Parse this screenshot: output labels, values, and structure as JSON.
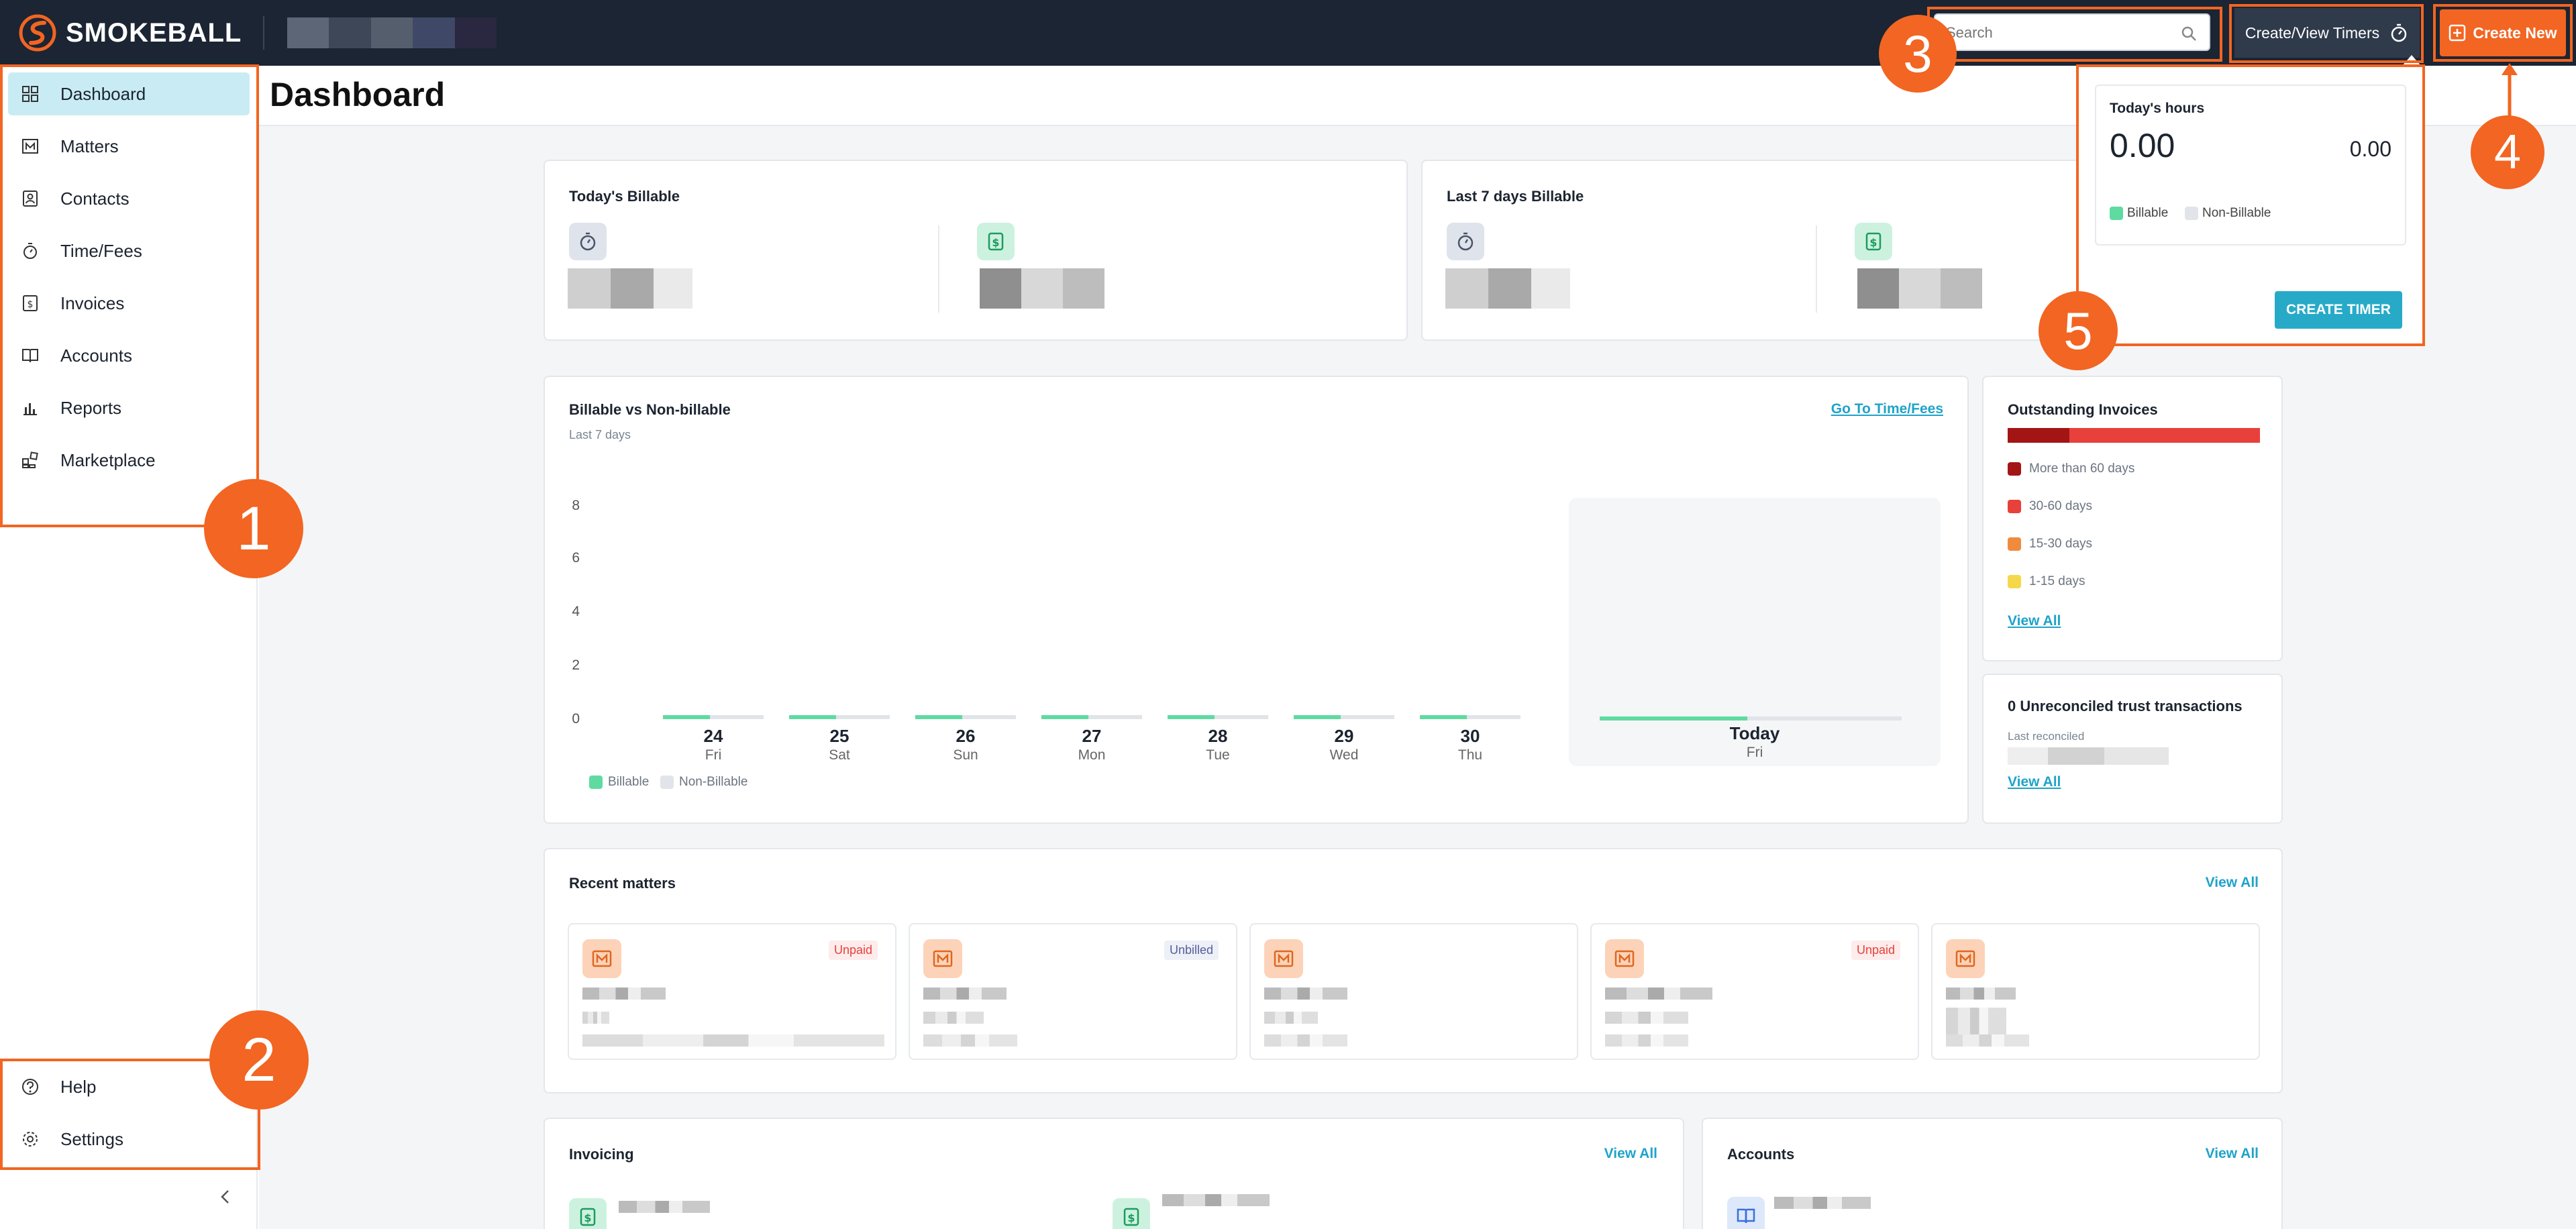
{
  "app": {
    "logo_text": "SMOKEBALL"
  },
  "header": {
    "search_placeholder": "Search",
    "timers_label": "Create/View Timers",
    "create_new_label": "Create New"
  },
  "sidebar": {
    "items": [
      {
        "label": "Dashboard",
        "icon": "dashboard-icon",
        "active": true
      },
      {
        "label": "Matters",
        "icon": "matters-icon"
      },
      {
        "label": "Contacts",
        "icon": "contacts-icon"
      },
      {
        "label": "Time/Fees",
        "icon": "timer-icon"
      },
      {
        "label": "Invoices",
        "icon": "invoice-icon"
      },
      {
        "label": "Accounts",
        "icon": "accounts-icon"
      },
      {
        "label": "Reports",
        "icon": "reports-icon"
      },
      {
        "label": "Marketplace",
        "icon": "marketplace-icon"
      }
    ],
    "bottom": [
      {
        "label": "Help",
        "icon": "help-icon"
      },
      {
        "label": "Settings",
        "icon": "settings-icon"
      }
    ]
  },
  "main": {
    "title": "Dashboard",
    "todays_billable": {
      "title": "Today's Billable"
    },
    "last7_billable": {
      "title": "Last 7 days Billable"
    },
    "chart_card": {
      "title": "Billable vs Non-billable",
      "subtitle": "Last 7 days",
      "link": "Go To Time/Fees"
    },
    "outstanding": {
      "title": "Outstanding Invoices",
      "legend": [
        {
          "label": "More than 60 days",
          "color": "#a31515"
        },
        {
          "label": "30-60 days",
          "color": "#e8403a"
        },
        {
          "label": "15-30 days",
          "color": "#f08a3c"
        },
        {
          "label": "1-15 days",
          "color": "#f5d84a"
        }
      ],
      "link": "View All"
    },
    "trust": {
      "title": "0 Unreconciled trust transactions",
      "sub": "Last reconciled",
      "link": "View All"
    },
    "recent_matters": {
      "title": "Recent matters",
      "link": "View All",
      "items": [
        {
          "status": "Unpaid"
        },
        {
          "status": "Unbilled"
        },
        {
          "status": ""
        },
        {
          "status": "Unpaid"
        },
        {
          "status": ""
        }
      ]
    },
    "invoicing": {
      "title": "Invoicing",
      "link": "View All"
    },
    "accounts": {
      "title": "Accounts",
      "link": "View All"
    }
  },
  "chart_data": {
    "type": "bar",
    "categories": [
      "24 Fri",
      "25 Sat",
      "26 Sun",
      "27 Mon",
      "28 Tue",
      "29 Wed",
      "30 Thu"
    ],
    "day_numbers": [
      "24",
      "25",
      "26",
      "27",
      "28",
      "29",
      "30"
    ],
    "day_names": [
      "Fri",
      "Sat",
      "Sun",
      "Mon",
      "Tue",
      "Wed",
      "Thu"
    ],
    "series": [
      {
        "name": "Billable",
        "values": [
          0,
          0,
          0,
          0,
          0,
          0,
          0
        ],
        "color": "#5fdba2"
      },
      {
        "name": "Non-Billable",
        "values": [
          0,
          0,
          0,
          0,
          0,
          0,
          0
        ],
        "color": "#e1e4e8"
      }
    ],
    "yticks": [
      "8",
      "6",
      "4",
      "2",
      "0"
    ],
    "ylim": [
      0,
      8
    ],
    "today": {
      "day": "Today",
      "name": "Fri"
    },
    "legend": [
      "Billable",
      "Non-Billable"
    ]
  },
  "timers_popover": {
    "title": "Today's hours",
    "left_value": "0.00",
    "right_value": "0.00",
    "legend": [
      "Billable",
      "Non-Billable"
    ],
    "button": "CREATE TIMER"
  },
  "callouts": [
    "1",
    "2",
    "3",
    "4",
    "5"
  ]
}
